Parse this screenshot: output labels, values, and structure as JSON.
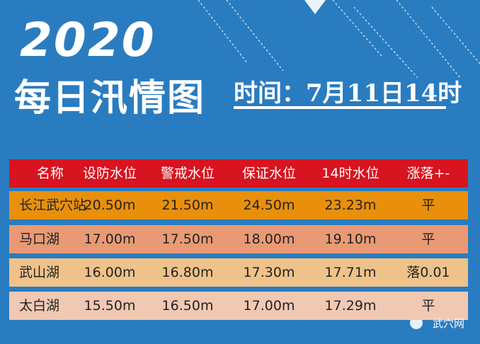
{
  "header": {
    "year": "2020",
    "title": "每日汛情图",
    "time": "时间：7月11日14时"
  },
  "table": {
    "columns": [
      "名称",
      "设防水位",
      "警戒水位",
      "保证水位",
      "14时水位",
      "涨落+-"
    ],
    "rows": [
      [
        "长江武穴站",
        "20.50m",
        "21.50m",
        "24.50m",
        "23.23m",
        "平"
      ],
      [
        "马口湖",
        "17.00m",
        "17.50m",
        "18.00m",
        "19.10m",
        "平"
      ],
      [
        "武山湖",
        "16.00m",
        "16.80m",
        "17.30m",
        "17.71m",
        "落0.01"
      ],
      [
        "太白湖",
        "15.50m",
        "16.50m",
        "17.00m",
        "17.29m",
        "平"
      ]
    ]
  },
  "watermark": "武穴网"
}
